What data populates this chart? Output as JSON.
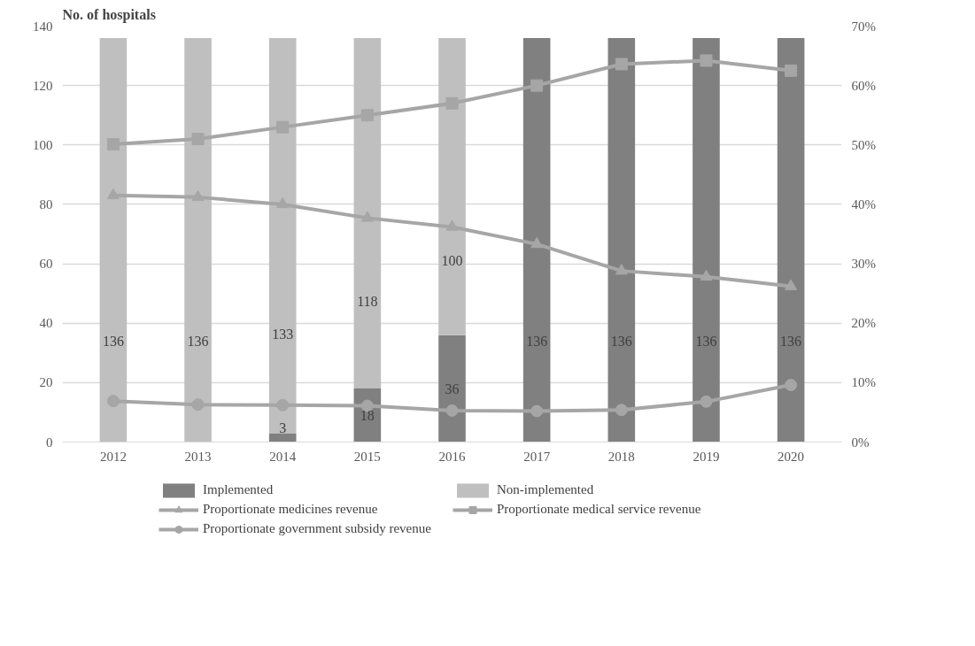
{
  "chart_data": {
    "type": "bar",
    "ylabel": "No. of hospitals",
    "stacked": true,
    "categories": [
      "2012",
      "2013",
      "2014",
      "2015",
      "2016",
      "2017",
      "2018",
      "2019",
      "2020"
    ],
    "ylim": [
      0,
      140
    ],
    "yticks": [
      0,
      20,
      40,
      60,
      80,
      100,
      120,
      140
    ],
    "y2lim": [
      0,
      70
    ],
    "y2ticks": [
      {
        "value": 0,
        "label": "0%"
      },
      {
        "value": 10,
        "label": "10%"
      },
      {
        "value": 20,
        "label": "20%"
      },
      {
        "value": 30,
        "label": "30%"
      },
      {
        "value": 40,
        "label": "40%"
      },
      {
        "value": 50,
        "label": "50%"
      },
      {
        "value": 60,
        "label": "60%"
      },
      {
        "value": 70,
        "label": "70%"
      }
    ],
    "grid": "y",
    "legend": "bottom",
    "series": [
      {
        "name": "Implemented",
        "color": "#808080",
        "values": [
          0,
          0,
          3,
          18,
          36,
          136,
          136,
          136,
          136
        ],
        "value_labels": [
          null,
          null,
          "3",
          "18",
          "36",
          "136",
          "136",
          "136",
          "136"
        ]
      },
      {
        "name": "Non-implemented",
        "color": "#bfbfbf",
        "values": [
          136,
          136,
          133,
          118,
          100,
          0,
          0,
          0,
          0
        ],
        "value_labels": [
          "136",
          "136",
          "133",
          "118",
          "100",
          null,
          null,
          null,
          null
        ]
      },
      {
        "name": "Proportionate medicines revenue",
        "type": "line",
        "axis": "y2",
        "marker": "triangle",
        "color": "#a6a6a6",
        "values": [
          41.5,
          41.2,
          40.0,
          37.7,
          36.2,
          33.3,
          28.8,
          27.8,
          26.2
        ]
      },
      {
        "name": "Proportionate medical service revenue",
        "type": "line",
        "axis": "y2",
        "marker": "square",
        "color": "#a6a6a6",
        "values": [
          50.1,
          51.0,
          53.0,
          55.0,
          57.0,
          60.0,
          63.6,
          64.2,
          62.5
        ]
      },
      {
        "name": "Proportionate government subsidy revenue",
        "type": "line",
        "axis": "y2",
        "marker": "circle",
        "color": "#a6a6a6",
        "values": [
          6.9,
          6.3,
          6.2,
          6.1,
          5.3,
          5.2,
          5.4,
          6.8,
          9.6
        ]
      }
    ]
  }
}
